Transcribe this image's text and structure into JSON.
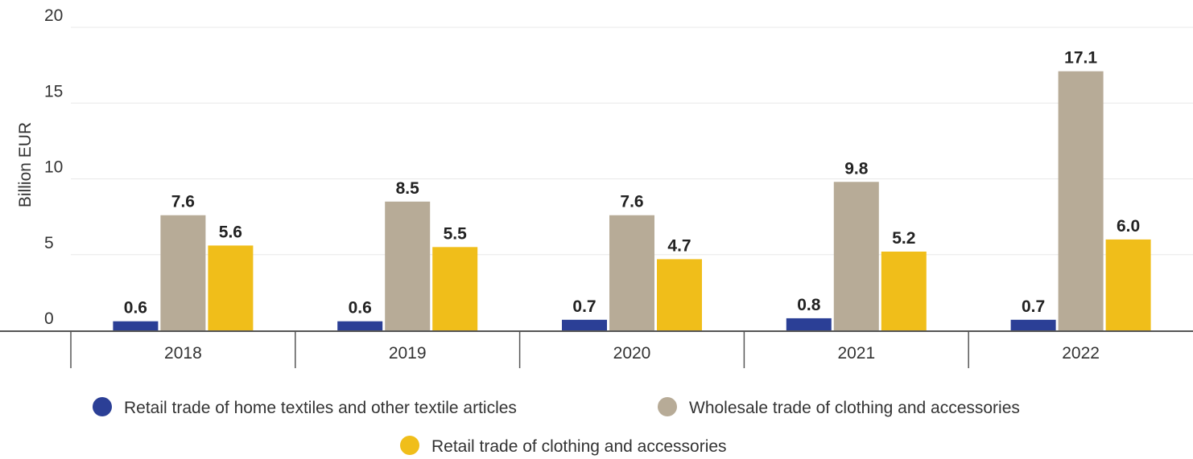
{
  "chart_data": {
    "type": "bar",
    "ylabel": "Billion EUR",
    "xlabel": "",
    "ylim": [
      0,
      20
    ],
    "yticks": [
      0,
      5,
      10,
      15,
      20
    ],
    "grid": true,
    "legend_position": "bottom",
    "categories": [
      "2018",
      "2019",
      "2020",
      "2021",
      "2022"
    ],
    "series": [
      {
        "name": "Retail trade of home textiles and other textile articles",
        "color": "#2b3f96",
        "values": [
          0.6,
          0.6,
          0.7,
          0.8,
          0.7
        ],
        "labels": [
          "0.6",
          "0.6",
          "0.7",
          "0.8",
          "0.7"
        ]
      },
      {
        "name": "Wholesale trade of clothing and accessories",
        "color": "#b7ab97",
        "values": [
          7.6,
          8.5,
          7.6,
          9.8,
          17.1
        ],
        "labels": [
          "7.6",
          "8.5",
          "7.6",
          "9.8",
          "17.1"
        ]
      },
      {
        "name": "Retail trade of clothing and accessories",
        "color": "#f0be1a",
        "values": [
          5.6,
          5.5,
          4.7,
          5.2,
          6.0
        ],
        "labels": [
          "5.6",
          "5.5",
          "4.7",
          "5.2",
          "6.0"
        ]
      }
    ]
  }
}
